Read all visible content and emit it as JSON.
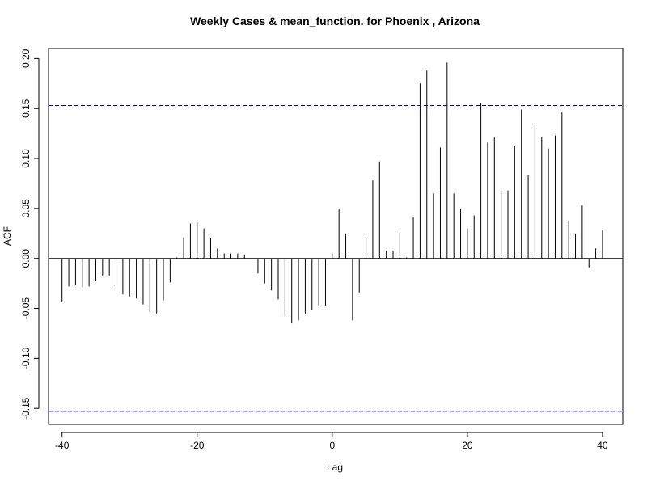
{
  "chart_data": {
    "type": "bar",
    "title": "Weekly Cases & mean_function. for Phoenix , Arizona",
    "xlabel": "Lag",
    "ylabel": "ACF",
    "xlim": [
      -42,
      43
    ],
    "ylim": [
      -0.166,
      0.21
    ],
    "x_ticks": [
      -40,
      -20,
      0,
      20,
      40
    ],
    "y_ticks": [
      -0.15,
      -0.1,
      -0.05,
      0.0,
      0.05,
      0.1,
      0.15,
      0.2
    ],
    "x_tick_labels": [
      "-40",
      "-20",
      "0",
      "20",
      "40"
    ],
    "y_tick_labels": [
      "-0.15",
      "-0.10",
      "-0.05",
      "0.00",
      "0.05",
      "0.10",
      "0.15",
      "0.20"
    ],
    "confidence_bounds": [
      0.153,
      -0.153
    ],
    "colors": {
      "bars": "#000000",
      "bounds": "#0000CD",
      "zero_line": "#000000"
    },
    "lags": [
      -40,
      -39,
      -38,
      -37,
      -36,
      -35,
      -34,
      -33,
      -32,
      -31,
      -30,
      -29,
      -28,
      -27,
      -26,
      -25,
      -24,
      -23,
      -22,
      -21,
      -20,
      -19,
      -18,
      -17,
      -16,
      -15,
      -14,
      -13,
      -12,
      -11,
      -10,
      -9,
      -8,
      -7,
      -6,
      -5,
      -4,
      -3,
      -2,
      -1,
      0,
      1,
      2,
      3,
      4,
      5,
      6,
      7,
      8,
      9,
      10,
      11,
      12,
      13,
      14,
      15,
      16,
      17,
      18,
      19,
      20,
      21,
      22,
      23,
      24,
      25,
      26,
      27,
      28,
      29,
      30,
      31,
      32,
      33,
      34,
      35,
      36,
      37,
      38,
      39,
      40
    ],
    "values": [
      -0.044,
      -0.028,
      -0.027,
      -0.029,
      -0.028,
      -0.023,
      -0.017,
      -0.018,
      -0.027,
      -0.036,
      -0.038,
      -0.04,
      -0.046,
      -0.054,
      -0.055,
      -0.042,
      -0.024,
      0.001,
      0.021,
      0.035,
      0.036,
      0.03,
      0.02,
      0.01,
      0.005,
      0.005,
      0.005,
      0.004,
      0.0,
      -0.015,
      -0.025,
      -0.032,
      -0.041,
      -0.058,
      -0.065,
      -0.062,
      -0.055,
      -0.052,
      -0.048,
      -0.047,
      0.005,
      0.05,
      0.025,
      -0.062,
      -0.034,
      0.02,
      0.078,
      0.097,
      0.008,
      0.008,
      0.026,
      0.001,
      0.042,
      0.175,
      0.188,
      0.065,
      0.111,
      0.196,
      0.065,
      0.05,
      0.03,
      0.043,
      0.155,
      0.116,
      0.121,
      0.068,
      0.068,
      0.113,
      0.149,
      0.083,
      0.135,
      0.121,
      0.11,
      0.123,
      0.146,
      0.038,
      0.025,
      0.053,
      -0.009,
      0.01,
      0.029
    ]
  }
}
